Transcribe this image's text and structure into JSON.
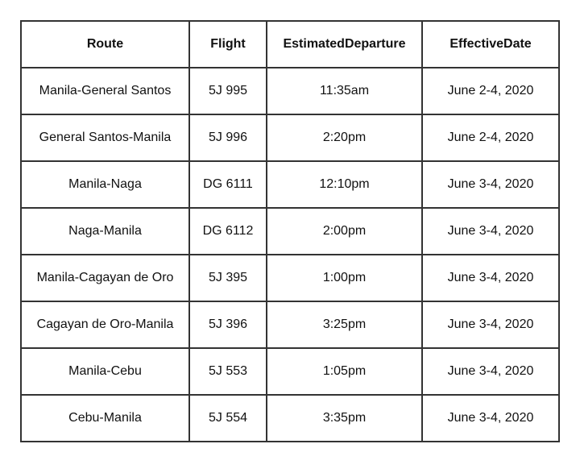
{
  "table": {
    "headers": [
      "Route",
      "Flight",
      "EstimatedDeparture",
      "EffectiveDate"
    ],
    "rows": [
      [
        "Manila-General Santos",
        "5J 995",
        "11:35am",
        "June 2-4, 2020"
      ],
      [
        "General Santos-Manila",
        "5J 996",
        "2:20pm",
        "June 2-4, 2020"
      ],
      [
        "Manila-Naga",
        "DG 6111",
        "12:10pm",
        "June 3-4, 2020"
      ],
      [
        "Naga-Manila",
        "DG 6112",
        "2:00pm",
        "June 3-4, 2020"
      ],
      [
        "Manila-Cagayan de Oro",
        "5J 395",
        "1:00pm",
        "June 3-4, 2020"
      ],
      [
        "Cagayan de Oro-Manila",
        "5J 396",
        "3:25pm",
        "June 3-4, 2020"
      ],
      [
        "Manila-Cebu",
        "5J 553",
        "1:05pm",
        "June 3-4, 2020"
      ],
      [
        "Cebu-Manila",
        "5J 554",
        "3:35pm",
        "June 3-4, 2020"
      ]
    ]
  }
}
